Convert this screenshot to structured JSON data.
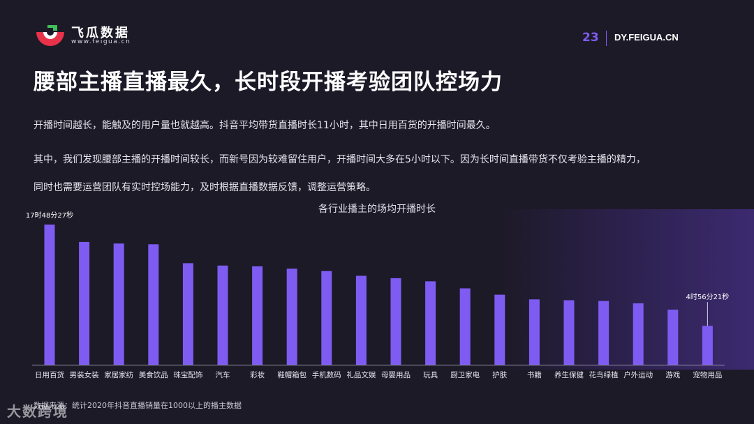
{
  "brand": {
    "name": "飞瓜数据",
    "url": "www.feigua.cn"
  },
  "header": {
    "page_number": "23",
    "site": "DY.FEIGUA.CN"
  },
  "headline": "腰部主播直播最久，长时段开播考验团队控场力",
  "paragraphs": [
    "开播时间越长，能触及的用户量也就越高。抖音平均带货直播时长11小时，其中日用百货的开播时间最久。",
    "其中，我们发现腰部主播的开播时间较长，而新号因为较难留住用户，开播时间大多在5小时以下。因为长时间直播带货不仅考验主播的精力，",
    "同时也需要运营团队有实时控场能力，及时根据直播数据反馈，调整运营策略。"
  ],
  "source": "数据来源：统计2020年抖音直播销量在1000以上的播主数据",
  "watermark": "大数跨境",
  "colors": {
    "background": "#1d1a28",
    "bar": "#7e5cf2",
    "accent": "#7e5cf2",
    "logo_red": "#e8324a",
    "logo_green": "#3fbf5a"
  },
  "chart_data": {
    "type": "bar",
    "title": "各行业播主的场均开播时长",
    "categories": [
      "日用百货",
      "男装女装",
      "家居家纺",
      "美食饮品",
      "珠宝配饰",
      "汽车",
      "彩妆",
      "鞋帽箱包",
      "手机数码",
      "礼品文娱",
      "母婴用品",
      "玩具",
      "厨卫家电",
      "护肤",
      "书籍",
      "养生保健",
      "花鸟绿植",
      "户外运动",
      "游戏",
      "宠物用品"
    ],
    "values": [
      17.81,
      15.6,
      15.4,
      15.3,
      12.9,
      12.6,
      12.5,
      12.2,
      11.9,
      11.3,
      11.0,
      10.6,
      9.7,
      8.9,
      8.3,
      8.2,
      8.1,
      7.8,
      7.0,
      4.94
    ],
    "annotations": [
      {
        "index": 0,
        "label": "17时48分27秒"
      },
      {
        "index": 19,
        "label": "4时56分21秒"
      }
    ],
    "ylim": [
      0,
      17.81
    ],
    "grid": false,
    "legend": "none"
  }
}
